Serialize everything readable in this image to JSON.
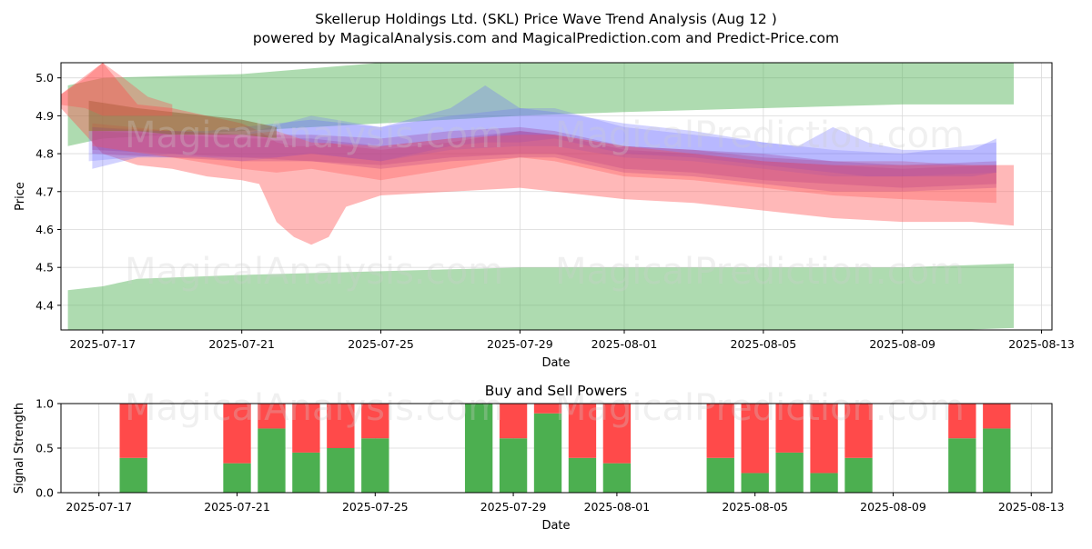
{
  "colors": {
    "green_band": "#4caf50",
    "red_band": "#ff4d4d",
    "blue_band": "#6b6bff",
    "purple_band": "#9b3a9b",
    "brown_band": "#8b6a3a",
    "buy_bar": "#4caf50",
    "sell_bar": "#ff4a4a",
    "grid": "#d9d9d9"
  },
  "watermarks": [
    "MagicalAnalysis.com",
    "MagicalPrediction.com"
  ],
  "chart_data": [
    {
      "type": "area",
      "title_line1": "Skellerup Holdings Ltd. (SKL) Price Wave Trend Analysis (Aug 12 )",
      "title_line2": "powered by MagicalAnalysis.com and MagicalPrediction.com and Predict-Price.com",
      "xlabel": "Date",
      "ylabel": "Price",
      "x_start": "2025-07-16",
      "x_end": "2025-08-13",
      "xlim": [
        -1.2,
        27.3
      ],
      "ylim": [
        4.335,
        5.04
      ],
      "xticks": [
        {
          "day": 0,
          "label": "2025-07-17"
        },
        {
          "day": 4,
          "label": "2025-07-21"
        },
        {
          "day": 8,
          "label": "2025-07-25"
        },
        {
          "day": 12,
          "label": "2025-07-29"
        },
        {
          "day": 15,
          "label": "2025-08-01"
        },
        {
          "day": 19,
          "label": "2025-08-05"
        },
        {
          "day": 23,
          "label": "2025-08-09"
        },
        {
          "day": 27,
          "label": "2025-08-13"
        }
      ],
      "yticks": [
        4.4,
        4.5,
        4.6,
        4.7,
        4.8,
        4.9,
        5.0
      ],
      "grid": true,
      "bands": [
        {
          "name": "upper-green",
          "color": "green",
          "opacity": 0.45,
          "x": [
            -1,
            0,
            4,
            8,
            12,
            15,
            19,
            23,
            26.2
          ],
          "upper": [
            4.98,
            5.0,
            5.01,
            5.04,
            5.04,
            5.04,
            5.04,
            5.04,
            5.04
          ],
          "lower": [
            4.82,
            4.84,
            4.86,
            4.88,
            4.9,
            4.91,
            4.92,
            4.93,
            4.93
          ]
        },
        {
          "name": "lower-green",
          "color": "green",
          "opacity": 0.45,
          "x": [
            -1,
            0,
            1,
            4,
            8,
            12,
            15,
            19,
            23,
            26.2
          ],
          "upper": [
            4.44,
            4.45,
            4.47,
            4.48,
            4.49,
            4.5,
            4.5,
            4.5,
            4.5,
            4.51
          ],
          "lower": [
            4.33,
            4.33,
            4.33,
            4.33,
            4.33,
            4.33,
            4.33,
            4.33,
            4.33,
            4.34
          ]
        },
        {
          "name": "red-wide",
          "color": "red",
          "opacity": 0.4,
          "x": [
            -1.3,
            0,
            1,
            2,
            3,
            4,
            4.5,
            5,
            5.5,
            6,
            6.5,
            7,
            8,
            10,
            12,
            13,
            15,
            17,
            19,
            21,
            23,
            25,
            26.2
          ],
          "upper": [
            4.95,
            5.04,
            4.93,
            4.92,
            4.9,
            4.88,
            4.86,
            4.83,
            4.82,
            4.82,
            4.83,
            4.82,
            4.81,
            4.83,
            4.86,
            4.85,
            4.82,
            4.81,
            4.79,
            4.78,
            4.78,
            4.77,
            4.77
          ],
          "lower": [
            4.93,
            4.8,
            4.77,
            4.76,
            4.74,
            4.73,
            4.72,
            4.62,
            4.58,
            4.56,
            4.58,
            4.66,
            4.69,
            4.7,
            4.71,
            4.7,
            4.68,
            4.67,
            4.65,
            4.63,
            4.62,
            4.62,
            4.61
          ]
        },
        {
          "name": "blue-a",
          "color": "blue",
          "opacity": 0.3,
          "x": [
            -0.3,
            1,
            3,
            5,
            6,
            8,
            10,
            11,
            12,
            13,
            15,
            17,
            19,
            20,
            21,
            22,
            23,
            25,
            25.7
          ],
          "upper": [
            4.87,
            4.86,
            4.86,
            4.88,
            4.89,
            4.87,
            4.92,
            4.98,
            4.92,
            4.91,
            4.88,
            4.86,
            4.83,
            4.82,
            4.87,
            4.83,
            4.81,
            4.81,
            4.84
          ],
          "lower": [
            4.76,
            4.79,
            4.79,
            4.79,
            4.8,
            4.78,
            4.82,
            4.83,
            4.83,
            4.84,
            4.8,
            4.79,
            4.77,
            4.76,
            4.75,
            4.74,
            4.74,
            4.74,
            4.75
          ]
        },
        {
          "name": "blue-b",
          "color": "blue",
          "opacity": 0.25,
          "x": [
            -0.4,
            2,
            4,
            6,
            8,
            10,
            12,
            13,
            15,
            17,
            19,
            21,
            23,
            25.7
          ],
          "upper": [
            4.86,
            4.86,
            4.85,
            4.9,
            4.87,
            4.9,
            4.92,
            4.92,
            4.87,
            4.85,
            4.83,
            4.81,
            4.8,
            4.83
          ],
          "lower": [
            4.78,
            4.8,
            4.78,
            4.8,
            4.78,
            4.81,
            4.82,
            4.82,
            4.79,
            4.78,
            4.76,
            4.74,
            4.74,
            4.75
          ]
        },
        {
          "name": "purple-a",
          "color": "purple",
          "opacity": 0.3,
          "x": [
            -0.3,
            2,
            4,
            6,
            8,
            10,
            12,
            13,
            15,
            17,
            19,
            21,
            23,
            25.7
          ],
          "upper": [
            4.87,
            4.86,
            4.85,
            4.85,
            4.84,
            4.86,
            4.87,
            4.86,
            4.82,
            4.81,
            4.8,
            4.78,
            4.77,
            4.78
          ],
          "lower": [
            4.8,
            4.79,
            4.78,
            4.78,
            4.76,
            4.78,
            4.79,
            4.79,
            4.75,
            4.74,
            4.72,
            4.7,
            4.7,
            4.71
          ]
        },
        {
          "name": "purple-b",
          "color": "purple",
          "opacity": 0.28,
          "x": [
            -0.3,
            2,
            4,
            6,
            8,
            10,
            12,
            13,
            15,
            17,
            19,
            21,
            23,
            25.7
          ],
          "upper": [
            4.86,
            4.85,
            4.84,
            4.84,
            4.82,
            4.84,
            4.86,
            4.85,
            4.81,
            4.8,
            4.78,
            4.77,
            4.76,
            4.77
          ],
          "lower": [
            4.81,
            4.8,
            4.79,
            4.78,
            4.77,
            4.79,
            4.8,
            4.8,
            4.76,
            4.75,
            4.73,
            4.72,
            4.71,
            4.72
          ]
        },
        {
          "name": "red-mid",
          "color": "red",
          "opacity": 0.3,
          "x": [
            -0.3,
            2,
            4,
            5,
            6,
            8,
            10,
            12,
            13,
            15,
            17,
            19,
            21,
            23,
            25.7
          ],
          "upper": [
            4.88,
            4.86,
            4.85,
            4.86,
            4.83,
            4.82,
            4.84,
            4.85,
            4.85,
            4.82,
            4.8,
            4.78,
            4.77,
            4.77,
            4.77
          ],
          "lower": [
            4.82,
            4.79,
            4.76,
            4.75,
            4.76,
            4.73,
            4.76,
            4.79,
            4.78,
            4.74,
            4.73,
            4.71,
            4.69,
            4.68,
            4.67
          ]
        },
        {
          "name": "brown-top",
          "color": "brown",
          "opacity": 0.55,
          "x": [
            -0.4,
            1,
            2,
            3,
            4,
            5
          ],
          "upper": [
            4.94,
            4.92,
            4.91,
            4.9,
            4.89,
            4.87
          ],
          "lower": [
            4.86,
            4.86,
            4.85,
            4.85,
            4.85,
            4.84
          ]
        },
        {
          "name": "red-spike",
          "color": "red",
          "opacity": 0.35,
          "x": [
            -1.3,
            -0.5,
            0,
            0.6,
            1.3,
            2
          ],
          "upper": [
            4.95,
            5.0,
            5.04,
            5.0,
            4.95,
            4.93
          ],
          "lower": [
            4.93,
            4.92,
            4.9,
            4.9,
            4.9,
            4.9
          ]
        }
      ]
    },
    {
      "type": "bar",
      "title": "Buy and Sell Powers",
      "xlabel": "Date",
      "ylabel": "Signal Strength",
      "ylim": [
        0,
        1.0
      ],
      "yticks": [
        "0.0",
        "0.5",
        "1.0"
      ],
      "xticks": [
        {
          "day": -2,
          "label": "2025-07-17"
        },
        {
          "day": 2,
          "label": "2025-07-21"
        },
        {
          "day": 6,
          "label": "2025-07-25"
        },
        {
          "day": 10,
          "label": "2025-07-29"
        },
        {
          "day": 13,
          "label": "2025-08-01"
        },
        {
          "day": 17,
          "label": "2025-08-05"
        },
        {
          "day": 21,
          "label": "2025-08-09"
        },
        {
          "day": 25,
          "label": "2025-08-13"
        }
      ],
      "xlim": [
        -3.1,
        25.6
      ],
      "series": [
        {
          "name": "Buy",
          "color": "green",
          "days": [
            -1,
            2,
            3,
            4,
            5,
            6,
            9,
            10,
            11,
            12,
            13,
            16,
            17,
            18,
            19,
            20,
            23,
            24
          ],
          "values": [
            0.39,
            0.33,
            0.72,
            0.45,
            0.5,
            0.61,
            1.0,
            0.61,
            0.89,
            0.39,
            0.33,
            0.39,
            0.22,
            0.45,
            0.22,
            0.39,
            0.61,
            0.72
          ]
        },
        {
          "name": "Sell",
          "color": "red",
          "days": [
            -1,
            2,
            3,
            4,
            5,
            6,
            9,
            10,
            11,
            12,
            13,
            16,
            17,
            18,
            19,
            20,
            23,
            24
          ],
          "values": [
            0.61,
            0.67,
            0.28,
            0.55,
            0.5,
            0.39,
            0.0,
            0.39,
            0.11,
            0.61,
            0.67,
            0.61,
            0.78,
            0.55,
            0.78,
            0.61,
            0.39,
            0.28
          ]
        }
      ]
    }
  ]
}
